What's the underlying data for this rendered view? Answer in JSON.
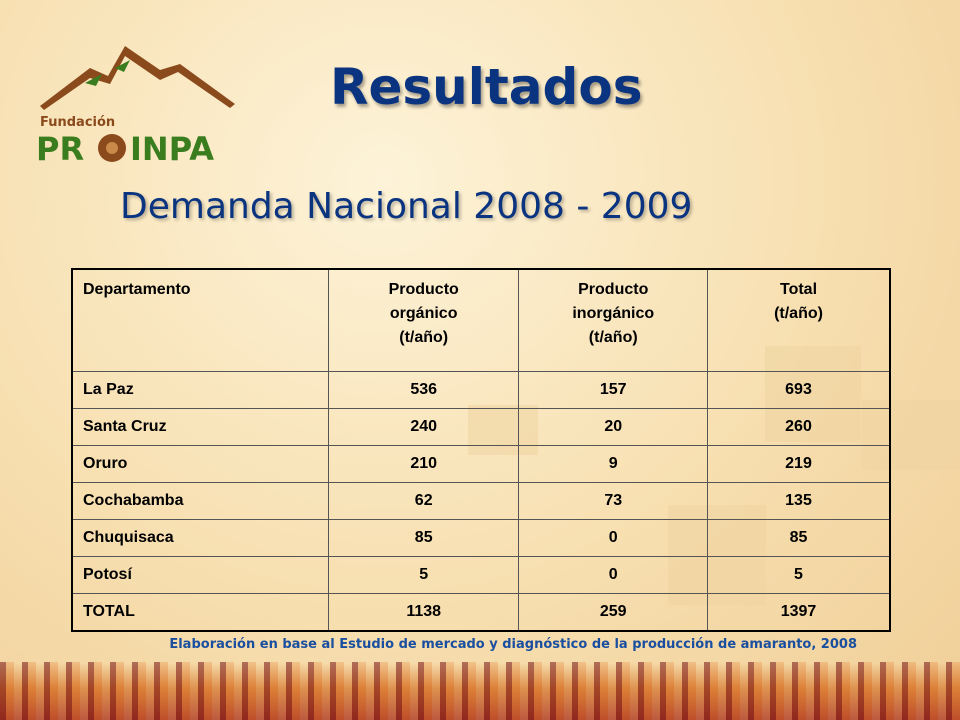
{
  "logo": {
    "top_text": "Fundación",
    "brand_left": "PR",
    "brand_right": "INPA"
  },
  "title": "Resultados",
  "subtitle": "Demanda Nacional 2008 - 2009",
  "table": {
    "headers": [
      [
        "Departamento"
      ],
      [
        "Producto",
        "orgánico",
        "(t/año)"
      ],
      [
        "Producto",
        "inorgánico",
        "(t/año)"
      ],
      [
        "Total",
        "(t/año)"
      ]
    ],
    "rows": [
      [
        "La Paz",
        "536",
        "157",
        "693"
      ],
      [
        "Santa Cruz",
        "240",
        "20",
        "260"
      ],
      [
        "Oruro",
        "210",
        "9",
        "219"
      ],
      [
        "Cochabamba",
        "62",
        "73",
        "135"
      ],
      [
        "Chuquisaca",
        "85",
        "0",
        "85"
      ],
      [
        "Potosí",
        "5",
        "0",
        "5"
      ],
      [
        "TOTAL",
        "1138",
        "259",
        "1397"
      ]
    ]
  },
  "source": "Elaboración en base al Estudio de mercado y diagnóstico de la producción de amaranto, 2008",
  "colors": {
    "title": "#0a3380",
    "source": "#1a4fa0",
    "logo_green": "#3a7d1e",
    "logo_brown": "#8a4a1c"
  }
}
